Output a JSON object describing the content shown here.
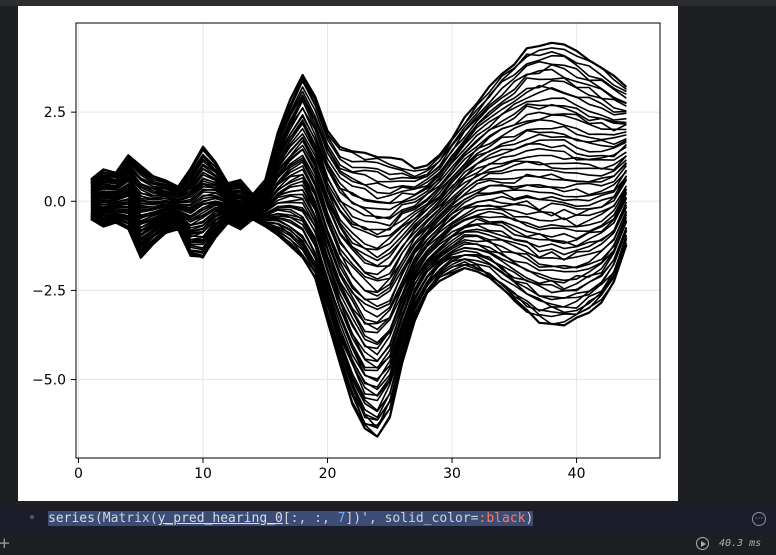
{
  "cell": {
    "code": {
      "fn": "series",
      "open1": "(",
      "matrix": "Matrix",
      "open2": "(",
      "ident": "y_pred_hearing_0",
      "idx_open": "[:, :, ",
      "num": "7",
      "idx_close": "])",
      "kw": "', solid_color=",
      "sym": ":black",
      "close": ")"
    },
    "menu_icon": "ellipsis-circle-icon",
    "menu_glyph": "···"
  },
  "status": {
    "run_icon": "play-circle-icon",
    "run_time": "40.3 ms",
    "add_icon": "plus-icon",
    "add_glyph": "+"
  },
  "chart_data": {
    "type": "line",
    "title": "",
    "xlabel": "",
    "ylabel": "",
    "xlim": [
      -0.2,
      46.7
    ],
    "ylim": [
      -7.2,
      5.0
    ],
    "xticks": [
      "0",
      "10",
      "20",
      "30",
      "40"
    ],
    "yticks": [
      "2.5",
      "0.0",
      "−2.5",
      "−5.0"
    ],
    "grid": true,
    "legend": "none",
    "line_color": "#000000",
    "num_series": 64,
    "x": [
      1,
      2,
      3,
      4,
      5,
      6,
      7,
      8,
      9,
      10,
      11,
      12,
      13,
      14,
      15,
      16,
      17,
      18,
      19,
      20,
      21,
      22,
      23,
      24,
      25,
      26,
      27,
      28,
      29,
      30,
      31,
      32,
      33,
      34,
      35,
      36,
      37,
      38,
      39,
      40,
      41,
      42,
      43,
      44
    ],
    "envelope_upper": [
      0.6,
      0.9,
      0.8,
      1.3,
      1.0,
      0.7,
      0.6,
      0.4,
      0.9,
      1.5,
      1.1,
      0.5,
      0.6,
      0.2,
      0.6,
      1.9,
      2.8,
      3.6,
      2.9,
      2.0,
      1.5,
      1.4,
      1.4,
      1.3,
      1.2,
      1.1,
      0.9,
      1.0,
      1.3,
      1.8,
      2.3,
      2.8,
      3.2,
      3.6,
      3.9,
      4.3,
      4.4,
      4.5,
      4.4,
      4.2,
      4.0,
      3.8,
      3.5,
      3.2
    ],
    "envelope_lower": [
      -0.5,
      -0.7,
      -0.6,
      -0.8,
      -1.6,
      -1.2,
      -0.9,
      -0.8,
      -1.5,
      -1.6,
      -1.0,
      -0.6,
      -0.8,
      -0.5,
      -0.7,
      -0.9,
      -1.2,
      -1.6,
      -2.2,
      -3.4,
      -4.6,
      -5.6,
      -6.4,
      -6.6,
      -6.0,
      -4.6,
      -3.3,
      -2.6,
      -2.2,
      -2.0,
      -1.9,
      -2.0,
      -2.2,
      -2.5,
      -2.8,
      -3.1,
      -3.3,
      -3.4,
      -3.4,
      -3.3,
      -3.1,
      -2.8,
      -2.3,
      -1.2
    ]
  }
}
